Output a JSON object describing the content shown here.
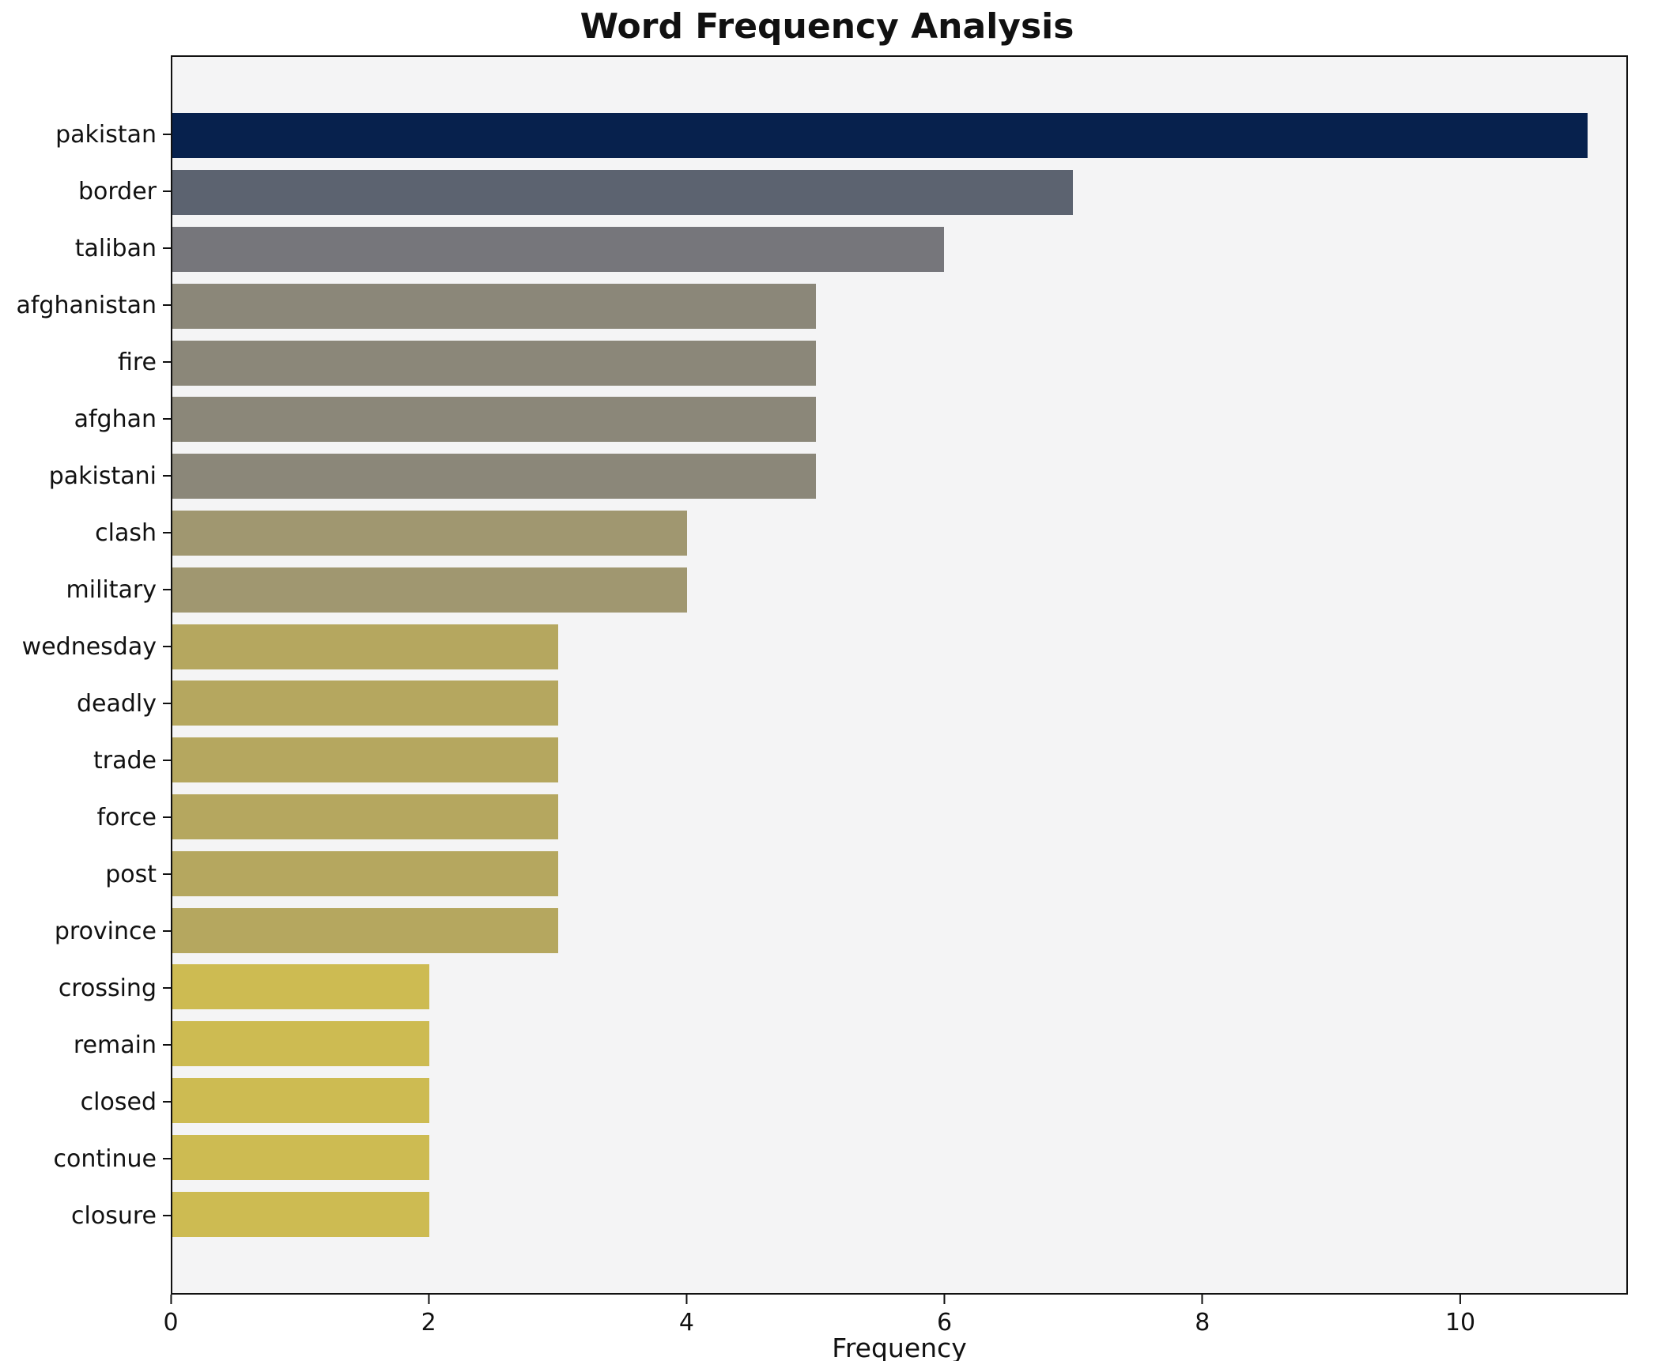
{
  "chart_data": {
    "type": "bar",
    "orientation": "horizontal",
    "title": "Word Frequency Analysis",
    "xlabel": "Frequency",
    "ylabel": "",
    "categories": [
      "pakistan",
      "border",
      "taliban",
      "afghanistan",
      "fire",
      "afghan",
      "pakistani",
      "clash",
      "military",
      "wednesday",
      "deadly",
      "trade",
      "force",
      "post",
      "province",
      "crossing",
      "remain",
      "closed",
      "continue",
      "closure"
    ],
    "values": [
      11,
      7,
      6,
      5,
      5,
      5,
      5,
      4,
      4,
      3,
      3,
      3,
      3,
      3,
      3,
      2,
      2,
      2,
      2,
      2
    ],
    "bar_colors": [
      "#07214d",
      "#5c6370",
      "#76767b",
      "#8b8779",
      "#8b8779",
      "#8b8779",
      "#8b8779",
      "#a09770",
      "#a09770",
      "#b5a75f",
      "#b5a75f",
      "#b5a75f",
      "#b5a75f",
      "#b5a75f",
      "#b5a75f",
      "#cdbb52",
      "#cdbb52",
      "#cdbb52",
      "#cdbb52",
      "#cdbb52"
    ],
    "xlim": [
      0,
      11.3
    ],
    "x_ticks": [
      0,
      2,
      4,
      6,
      8,
      10
    ],
    "grid": false,
    "legend_position": "none",
    "plot_background": "#f4f4f5",
    "figure_background": "#ffffff"
  }
}
